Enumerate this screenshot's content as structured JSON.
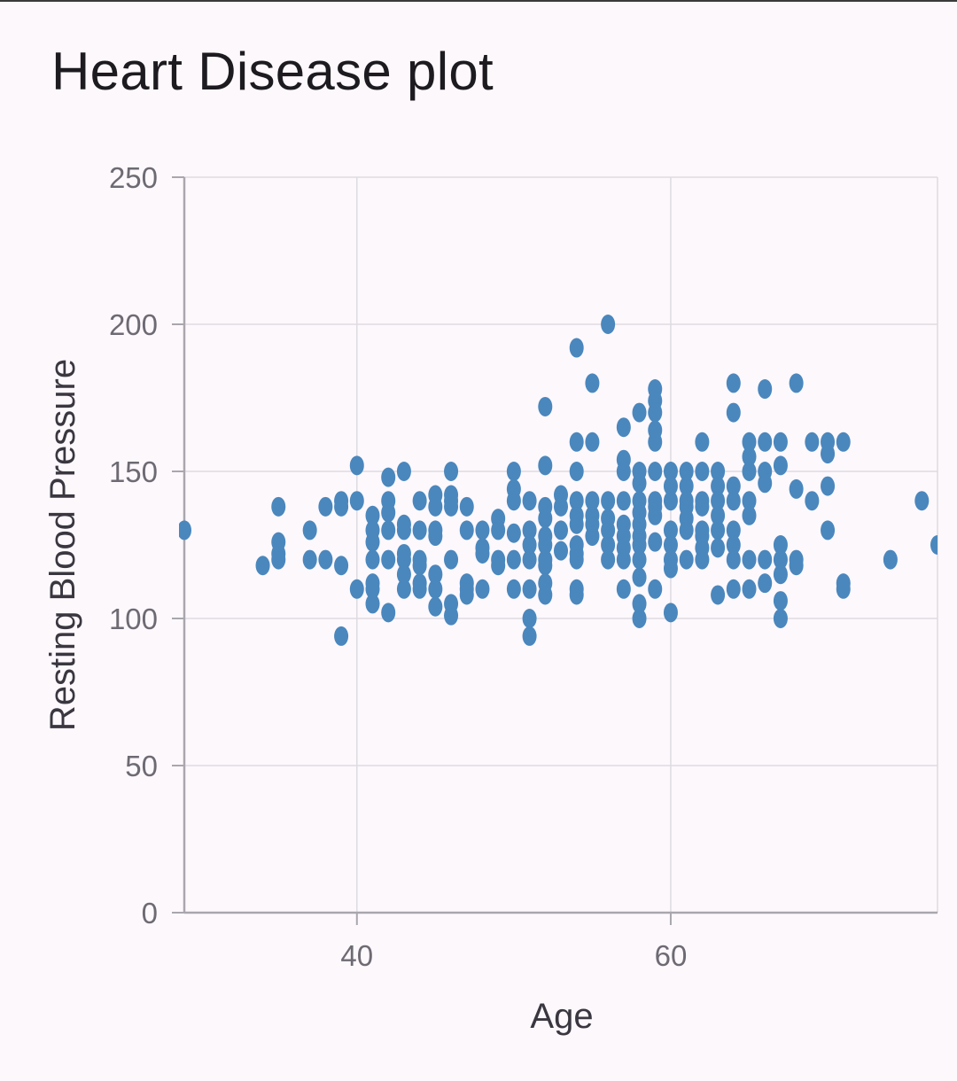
{
  "title": "Heart Disease plot",
  "chart_data": {
    "type": "scatter",
    "title": "Heart Disease plot",
    "xlabel": "Age",
    "ylabel": "Resting Blood Pressure",
    "xlim": [
      29,
      77
    ],
    "ylim": [
      0,
      250
    ],
    "x_ticks": [
      40,
      60
    ],
    "y_ticks": [
      0,
      50,
      100,
      150,
      200,
      250
    ],
    "grid": true,
    "marker_color": "#4a87bd",
    "grid_color": "#dedbe0",
    "axis_color": "#aaa6ad",
    "points": [
      [
        29,
        130
      ],
      [
        34,
        118
      ],
      [
        35,
        138
      ],
      [
        35,
        126
      ],
      [
        35,
        120
      ],
      [
        35,
        122
      ],
      [
        37,
        130
      ],
      [
        37,
        120
      ],
      [
        38,
        138
      ],
      [
        38,
        120
      ],
      [
        39,
        140
      ],
      [
        39,
        138
      ],
      [
        39,
        118
      ],
      [
        39,
        94
      ],
      [
        40,
        152
      ],
      [
        40,
        140
      ],
      [
        40,
        110
      ],
      [
        41,
        135
      ],
      [
        41,
        130
      ],
      [
        41,
        126
      ],
      [
        41,
        120
      ],
      [
        41,
        112
      ],
      [
        41,
        110
      ],
      [
        41,
        105
      ],
      [
        42,
        148
      ],
      [
        42,
        140
      ],
      [
        42,
        136
      ],
      [
        42,
        130
      ],
      [
        42,
        120
      ],
      [
        42,
        102
      ],
      [
        43,
        150
      ],
      [
        43,
        132
      ],
      [
        43,
        130
      ],
      [
        43,
        122
      ],
      [
        43,
        120
      ],
      [
        43,
        115
      ],
      [
        43,
        110
      ],
      [
        44,
        140
      ],
      [
        44,
        130
      ],
      [
        44,
        120
      ],
      [
        44,
        118
      ],
      [
        44,
        112
      ],
      [
        44,
        110
      ],
      [
        45,
        142
      ],
      [
        45,
        138
      ],
      [
        45,
        130
      ],
      [
        45,
        128
      ],
      [
        45,
        115
      ],
      [
        45,
        110
      ],
      [
        45,
        104
      ],
      [
        46,
        150
      ],
      [
        46,
        142
      ],
      [
        46,
        140
      ],
      [
        46,
        138
      ],
      [
        46,
        120
      ],
      [
        46,
        105
      ],
      [
        46,
        101
      ],
      [
        47,
        138
      ],
      [
        47,
        130
      ],
      [
        47,
        112
      ],
      [
        47,
        110
      ],
      [
        47,
        108
      ],
      [
        48,
        130
      ],
      [
        48,
        124
      ],
      [
        48,
        122
      ],
      [
        48,
        110
      ],
      [
        49,
        134
      ],
      [
        49,
        130
      ],
      [
        49,
        120
      ],
      [
        49,
        118
      ],
      [
        50,
        150
      ],
      [
        50,
        144
      ],
      [
        50,
        140
      ],
      [
        50,
        129
      ],
      [
        50,
        120
      ],
      [
        50,
        110
      ],
      [
        51,
        140
      ],
      [
        51,
        130
      ],
      [
        51,
        125
      ],
      [
        51,
        120
      ],
      [
        51,
        110
      ],
      [
        51,
        100
      ],
      [
        51,
        94
      ],
      [
        52,
        172
      ],
      [
        52,
        152
      ],
      [
        52,
        138
      ],
      [
        52,
        134
      ],
      [
        52,
        128
      ],
      [
        52,
        125
      ],
      [
        52,
        120
      ],
      [
        52,
        118
      ],
      [
        52,
        112
      ],
      [
        52,
        108
      ],
      [
        53,
        142
      ],
      [
        53,
        138
      ],
      [
        53,
        130
      ],
      [
        53,
        123
      ],
      [
        54,
        192
      ],
      [
        54,
        160
      ],
      [
        54,
        150
      ],
      [
        54,
        140
      ],
      [
        54,
        135
      ],
      [
        54,
        132
      ],
      [
        54,
        125
      ],
      [
        54,
        122
      ],
      [
        54,
        120
      ],
      [
        54,
        110
      ],
      [
        54,
        108
      ],
      [
        55,
        180
      ],
      [
        55,
        160
      ],
      [
        55,
        140
      ],
      [
        55,
        135
      ],
      [
        55,
        132
      ],
      [
        55,
        128
      ],
      [
        56,
        200
      ],
      [
        56,
        140
      ],
      [
        56,
        134
      ],
      [
        56,
        130
      ],
      [
        56,
        125
      ],
      [
        56,
        120
      ],
      [
        57,
        165
      ],
      [
        57,
        154
      ],
      [
        57,
        150
      ],
      [
        57,
        140
      ],
      [
        57,
        132
      ],
      [
        57,
        128
      ],
      [
        57,
        124
      ],
      [
        57,
        120
      ],
      [
        57,
        110
      ],
      [
        58,
        170
      ],
      [
        58,
        150
      ],
      [
        58,
        146
      ],
      [
        58,
        140
      ],
      [
        58,
        136
      ],
      [
        58,
        132
      ],
      [
        58,
        128
      ],
      [
        58,
        125
      ],
      [
        58,
        120
      ],
      [
        58,
        114
      ],
      [
        58,
        105
      ],
      [
        58,
        100
      ],
      [
        59,
        178
      ],
      [
        59,
        174
      ],
      [
        59,
        170
      ],
      [
        59,
        164
      ],
      [
        59,
        160
      ],
      [
        59,
        150
      ],
      [
        59,
        140
      ],
      [
        59,
        138
      ],
      [
        59,
        135
      ],
      [
        59,
        126
      ],
      [
        59,
        110
      ],
      [
        60,
        150
      ],
      [
        60,
        145
      ],
      [
        60,
        140
      ],
      [
        60,
        130
      ],
      [
        60,
        125
      ],
      [
        60,
        120
      ],
      [
        60,
        117
      ],
      [
        60,
        102
      ],
      [
        61,
        150
      ],
      [
        61,
        145
      ],
      [
        61,
        140
      ],
      [
        61,
        138
      ],
      [
        61,
        134
      ],
      [
        61,
        130
      ],
      [
        61,
        120
      ],
      [
        62,
        160
      ],
      [
        62,
        150
      ],
      [
        62,
        140
      ],
      [
        62,
        138
      ],
      [
        62,
        130
      ],
      [
        62,
        128
      ],
      [
        62,
        124
      ],
      [
        62,
        120
      ],
      [
        63,
        150
      ],
      [
        63,
        145
      ],
      [
        63,
        140
      ],
      [
        63,
        135
      ],
      [
        63,
        130
      ],
      [
        63,
        124
      ],
      [
        63,
        108
      ],
      [
        64,
        180
      ],
      [
        64,
        170
      ],
      [
        64,
        145
      ],
      [
        64,
        140
      ],
      [
        64,
        130
      ],
      [
        64,
        125
      ],
      [
        64,
        120
      ],
      [
        64,
        110
      ],
      [
        65,
        160
      ],
      [
        65,
        155
      ],
      [
        65,
        150
      ],
      [
        65,
        140
      ],
      [
        65,
        135
      ],
      [
        65,
        120
      ],
      [
        65,
        110
      ],
      [
        66,
        178
      ],
      [
        66,
        160
      ],
      [
        66,
        150
      ],
      [
        66,
        146
      ],
      [
        66,
        120
      ],
      [
        66,
        112
      ],
      [
        67,
        160
      ],
      [
        67,
        152
      ],
      [
        67,
        125
      ],
      [
        67,
        120
      ],
      [
        67,
        115
      ],
      [
        67,
        106
      ],
      [
        67,
        100
      ],
      [
        68,
        180
      ],
      [
        68,
        144
      ],
      [
        68,
        120
      ],
      [
        68,
        118
      ],
      [
        69,
        160
      ],
      [
        69,
        140
      ],
      [
        70,
        160
      ],
      [
        70,
        156
      ],
      [
        70,
        145
      ],
      [
        70,
        130
      ],
      [
        71,
        160
      ],
      [
        71,
        112
      ],
      [
        71,
        110
      ],
      [
        74,
        120
      ],
      [
        76,
        140
      ],
      [
        77,
        125
      ]
    ]
  }
}
